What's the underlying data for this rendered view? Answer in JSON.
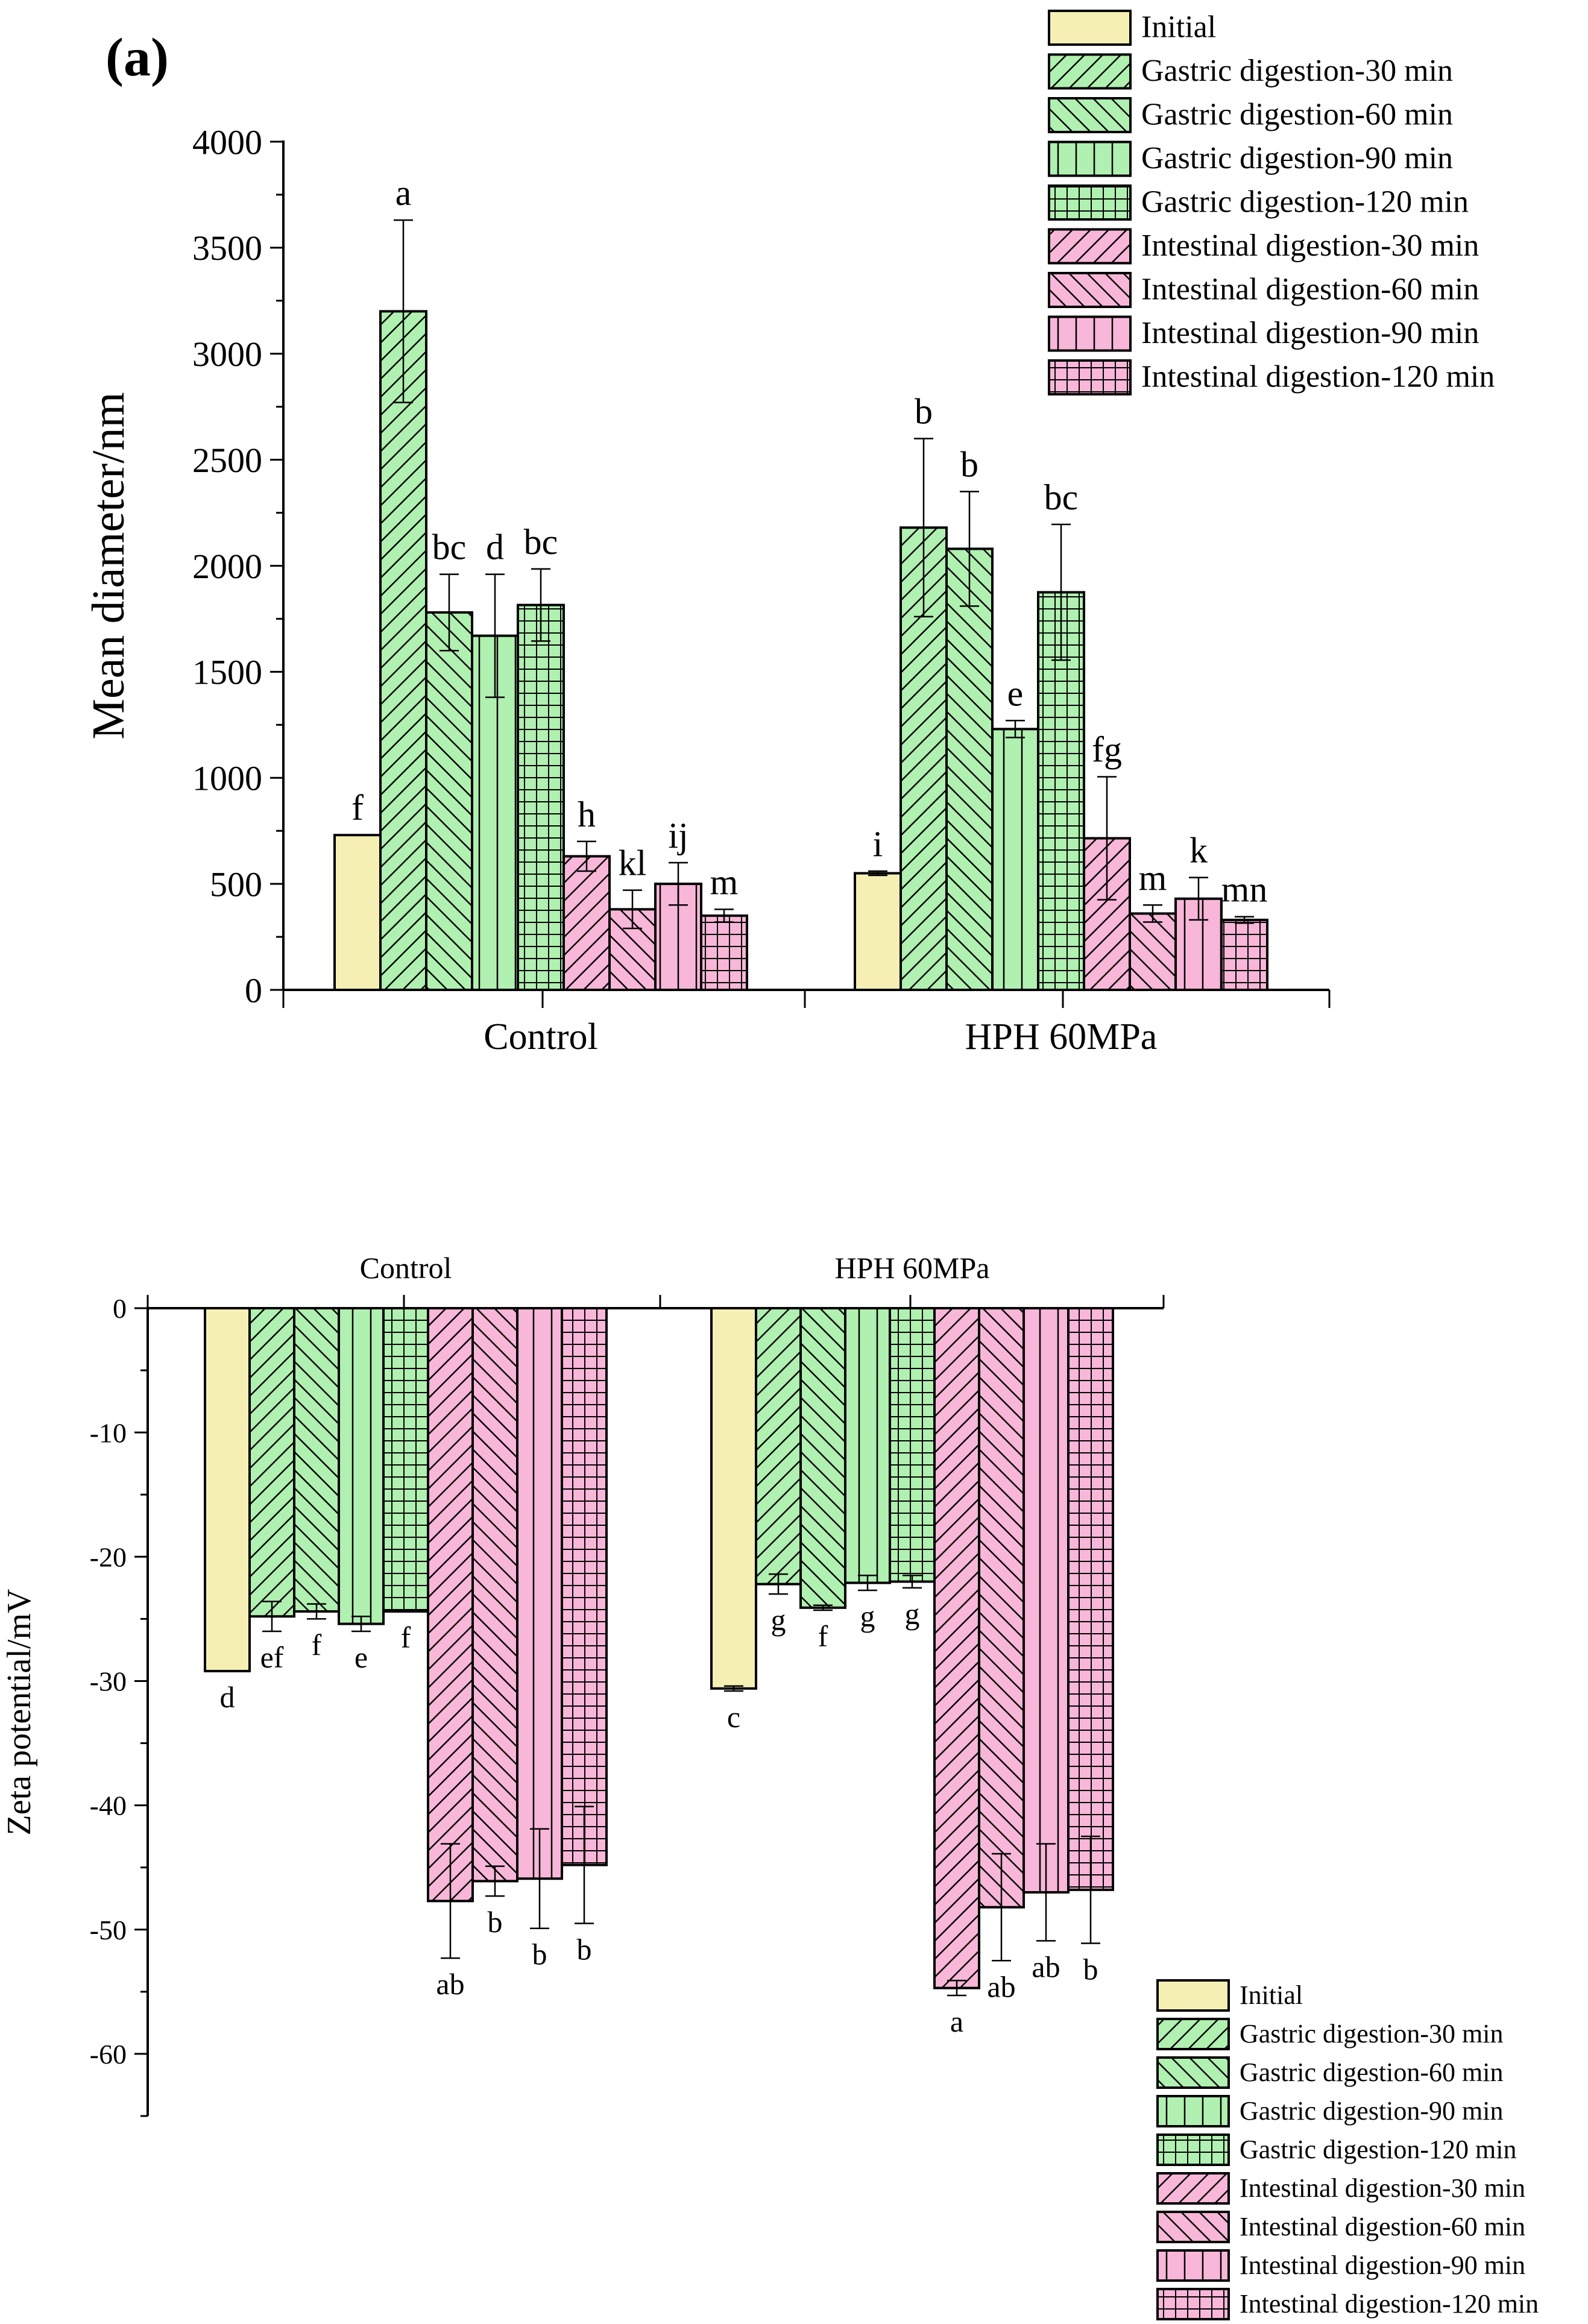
{
  "figure_label": "(a)",
  "colors": {
    "initial": "#f5efb4",
    "gastric": "#b0f0b0",
    "intestinal": "#f8b6d8",
    "stroke": "#000000"
  },
  "patterns": [
    "solid",
    "diag-up",
    "diag-down",
    "vertical",
    "grid",
    "diag-up",
    "diag-down",
    "vertical",
    "grid"
  ],
  "legend_entries": [
    "Initial",
    "Gastric digestion-30 min",
    "Gastric digestion-60 min",
    "Gastric digestion-90 min",
    "Gastric digestion-120 min",
    "Intestinal digestion-30 min",
    "Intestinal digestion-60 min",
    "Intestinal digestion-90 min",
    "Intestinal digestion-120 min"
  ],
  "chart_data": [
    {
      "type": "bar",
      "title": "",
      "xlabel": "",
      "ylabel": "Mean diameter/nm",
      "ylim": [
        0,
        4000
      ],
      "yticks": [
        "0",
        "500",
        "1000",
        "1500",
        "2000",
        "2500",
        "3000",
        "3500",
        "4000"
      ],
      "categories": [
        "Control",
        "HPH 60MPa"
      ],
      "legend_position": "top-right",
      "grid": false,
      "series": [
        {
          "name": "Initial",
          "values": [
            730,
            550
          ],
          "errors": [
            0,
            10
          ],
          "letters": [
            "f",
            "i"
          ]
        },
        {
          "name": "Gastric digestion-30 min",
          "values": [
            3200,
            2180
          ],
          "errors": [
            430,
            420
          ],
          "letters": [
            "a",
            "b"
          ]
        },
        {
          "name": "Gastric digestion-60 min",
          "values": [
            1780,
            2080
          ],
          "errors": [
            180,
            270
          ],
          "letters": [
            "bc",
            "b"
          ]
        },
        {
          "name": "Gastric digestion-90 min",
          "values": [
            1670,
            1230
          ],
          "errors": [
            290,
            40
          ],
          "letters": [
            "d",
            "e"
          ]
        },
        {
          "name": "Gastric digestion-120 min",
          "values": [
            1815,
            1875
          ],
          "errors": [
            170,
            320
          ],
          "letters": [
            "bc",
            "bc"
          ]
        },
        {
          "name": "Intestinal digestion-30 min",
          "values": [
            630,
            715
          ],
          "errors": [
            70,
            290
          ],
          "letters": [
            "h",
            "fg"
          ]
        },
        {
          "name": "Intestinal digestion-60 min",
          "values": [
            380,
            360
          ],
          "errors": [
            90,
            40
          ],
          "letters": [
            "kl",
            "m"
          ]
        },
        {
          "name": "Intestinal digestion-90 min",
          "values": [
            500,
            430
          ],
          "errors": [
            100,
            100
          ],
          "letters": [
            "ij",
            "k"
          ]
        },
        {
          "name": "Intestinal digestion-120 min",
          "values": [
            350,
            330
          ],
          "errors": [
            30,
            15
          ],
          "letters": [
            "m",
            "mn"
          ]
        }
      ]
    },
    {
      "type": "bar",
      "title": "",
      "xlabel": "",
      "ylabel": "Zeta potential/mV",
      "ylim": [
        -65,
        0
      ],
      "yticks": [
        "0",
        "-10",
        "-20",
        "-30",
        "-40",
        "-50",
        "-60"
      ],
      "categories": [
        "Control",
        "HPH 60MPa"
      ],
      "legend_position": "bottom-right",
      "grid": false,
      "series": [
        {
          "name": "Initial",
          "values": [
            -29.2,
            -30.6
          ],
          "errors": [
            0,
            0.2
          ],
          "letters": [
            "d",
            "c"
          ]
        },
        {
          "name": "Gastric digestion-30 min",
          "values": [
            -24.8,
            -22.2
          ],
          "errors": [
            1.2,
            0.8
          ],
          "letters": [
            "ef",
            "g"
          ]
        },
        {
          "name": "Gastric digestion-60 min",
          "values": [
            -24.4,
            -24.1
          ],
          "errors": [
            0.6,
            0.2
          ],
          "letters": [
            "f",
            "f"
          ]
        },
        {
          "name": "Gastric digestion-90 min",
          "values": [
            -25.4,
            -22.1
          ],
          "errors": [
            0.6,
            0.6
          ],
          "letters": [
            "e",
            "g"
          ]
        },
        {
          "name": "Gastric digestion-120 min",
          "values": [
            -24.4,
            -22.0
          ],
          "errors": [
            0,
            0.5
          ],
          "letters": [
            "f",
            "g"
          ]
        },
        {
          "name": "Intestinal digestion-30 min",
          "values": [
            -47.7,
            -54.7
          ],
          "errors": [
            4.6,
            0.6
          ],
          "letters": [
            "ab",
            "a"
          ]
        },
        {
          "name": "Intestinal digestion-60 min",
          "values": [
            -46.1,
            -48.2
          ],
          "errors": [
            1.2,
            4.3
          ],
          "letters": [
            "b",
            "ab"
          ]
        },
        {
          "name": "Intestinal digestion-90 min",
          "values": [
            -45.9,
            -47.0
          ],
          "errors": [
            4.0,
            3.9
          ],
          "letters": [
            "b",
            "ab"
          ]
        },
        {
          "name": "Intestinal digestion-120 min",
          "values": [
            -44.8,
            -46.8
          ],
          "errors": [
            4.7,
            4.3
          ],
          "letters": [
            "b",
            "b"
          ]
        }
      ]
    }
  ]
}
